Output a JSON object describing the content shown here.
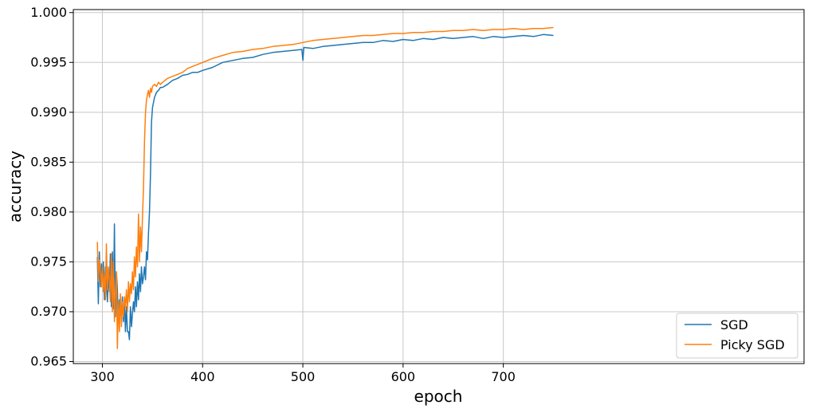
{
  "chart_data": {
    "type": "line",
    "title": "",
    "xlabel": "epoch",
    "ylabel": "accuracy",
    "xlim": [
      271,
      1000
    ],
    "ylim": [
      0.9648,
      1.0003
    ],
    "xticks": [
      300,
      400,
      500,
      600,
      700
    ],
    "xtick_labels": [
      "300",
      "400",
      "500",
      "600",
      "700"
    ],
    "yticks": [
      0.965,
      0.97,
      0.975,
      0.98,
      0.985,
      0.99,
      0.995,
      1.0
    ],
    "ytick_labels": [
      "0.965",
      "0.970",
      "0.975",
      "0.980",
      "0.985",
      "0.990",
      "0.995",
      "1.000"
    ],
    "grid": true,
    "legend_position": "lower-right",
    "series": [
      {
        "name": "SGD",
        "color": "#1f77b4",
        "x": [
          295,
          296,
          297,
          298,
          299,
          300,
          301,
          302,
          303,
          304,
          305,
          306,
          307,
          308,
          309,
          310,
          311,
          312,
          313,
          314,
          315,
          316,
          317,
          318,
          319,
          320,
          321,
          322,
          323,
          324,
          325,
          326,
          327,
          328,
          329,
          330,
          331,
          332,
          333,
          334,
          335,
          336,
          337,
          338,
          339,
          340,
          341,
          342,
          343,
          344,
          345,
          346,
          347,
          348,
          349,
          350,
          352,
          354,
          356,
          358,
          360,
          365,
          370,
          375,
          380,
          385,
          390,
          395,
          400,
          410,
          420,
          430,
          440,
          450,
          460,
          470,
          480,
          490,
          499,
          500,
          501,
          510,
          520,
          530,
          540,
          550,
          560,
          570,
          580,
          590,
          600,
          610,
          620,
          630,
          640,
          650,
          660,
          670,
          680,
          690,
          700,
          710,
          720,
          730,
          740,
          750
        ],
        "y": [
          0.9755,
          0.9708,
          0.976,
          0.9725,
          0.9748,
          0.9735,
          0.975,
          0.9712,
          0.9745,
          0.9728,
          0.971,
          0.9738,
          0.972,
          0.9758,
          0.9705,
          0.976,
          0.9703,
          0.9788,
          0.9695,
          0.974,
          0.9722,
          0.969,
          0.9712,
          0.97,
          0.9695,
          0.9715,
          0.969,
          0.9712,
          0.968,
          0.9705,
          0.968,
          0.968,
          0.9672,
          0.9705,
          0.9685,
          0.9698,
          0.971,
          0.97,
          0.9725,
          0.9705,
          0.973,
          0.9712,
          0.9738,
          0.972,
          0.9745,
          0.9728,
          0.9735,
          0.9745,
          0.9732,
          0.976,
          0.9752,
          0.9778,
          0.98,
          0.984,
          0.989,
          0.9905,
          0.9915,
          0.992,
          0.9922,
          0.9925,
          0.9925,
          0.9928,
          0.9932,
          0.9934,
          0.9937,
          0.9938,
          0.994,
          0.994,
          0.9942,
          0.9945,
          0.995,
          0.9952,
          0.9954,
          0.9955,
          0.9958,
          0.996,
          0.9961,
          0.9962,
          0.9963,
          0.9952,
          0.9965,
          0.9964,
          0.9966,
          0.9967,
          0.9968,
          0.9969,
          0.997,
          0.997,
          0.9972,
          0.9971,
          0.9973,
          0.9972,
          0.9974,
          0.9973,
          0.9975,
          0.9974,
          0.9975,
          0.9976,
          0.9974,
          0.9976,
          0.9975,
          0.9976,
          0.9977,
          0.9976,
          0.9978,
          0.9977
        ]
      },
      {
        "name": "Picky SGD",
        "color": "#ff7f0e",
        "x": [
          295,
          296,
          297,
          298,
          299,
          300,
          301,
          302,
          303,
          304,
          305,
          306,
          307,
          308,
          309,
          310,
          311,
          312,
          313,
          314,
          315,
          316,
          317,
          318,
          319,
          320,
          321,
          322,
          323,
          324,
          325,
          326,
          327,
          328,
          329,
          330,
          331,
          332,
          333,
          334,
          335,
          336,
          337,
          338,
          339,
          340,
          341,
          342,
          343,
          344,
          345,
          346,
          347,
          348,
          349,
          350,
          352,
          354,
          356,
          358,
          360,
          365,
          370,
          375,
          380,
          385,
          390,
          395,
          400,
          410,
          420,
          430,
          440,
          450,
          460,
          470,
          480,
          490,
          500,
          510,
          520,
          530,
          540,
          550,
          560,
          570,
          580,
          590,
          600,
          610,
          620,
          630,
          640,
          650,
          660,
          670,
          680,
          690,
          700,
          710,
          720,
          730,
          740,
          750
        ],
        "y": [
          0.977,
          0.973,
          0.9752,
          0.974,
          0.9725,
          0.9745,
          0.972,
          0.9738,
          0.9712,
          0.9768,
          0.9722,
          0.9745,
          0.9732,
          0.971,
          0.9758,
          0.97,
          0.975,
          0.969,
          0.9718,
          0.974,
          0.9663,
          0.971,
          0.968,
          0.9718,
          0.9685,
          0.971,
          0.9695,
          0.9715,
          0.9705,
          0.9722,
          0.97,
          0.973,
          0.971,
          0.9728,
          0.9718,
          0.974,
          0.9722,
          0.9755,
          0.9735,
          0.9765,
          0.9745,
          0.9798,
          0.975,
          0.9785,
          0.976,
          0.9795,
          0.9825,
          0.987,
          0.99,
          0.9912,
          0.9918,
          0.9922,
          0.9915,
          0.9924,
          0.992,
          0.9926,
          0.9928,
          0.9926,
          0.993,
          0.9928,
          0.993,
          0.9934,
          0.9936,
          0.9938,
          0.994,
          0.9944,
          0.9946,
          0.9948,
          0.995,
          0.9954,
          0.9957,
          0.996,
          0.9961,
          0.9963,
          0.9964,
          0.9966,
          0.9967,
          0.9968,
          0.997,
          0.9972,
          0.9973,
          0.9974,
          0.9975,
          0.9976,
          0.9977,
          0.9977,
          0.9978,
          0.9979,
          0.9979,
          0.998,
          0.998,
          0.9981,
          0.9981,
          0.9982,
          0.9982,
          0.9983,
          0.9982,
          0.9983,
          0.9983,
          0.9984,
          0.9983,
          0.9984,
          0.9984,
          0.9985
        ]
      }
    ]
  }
}
